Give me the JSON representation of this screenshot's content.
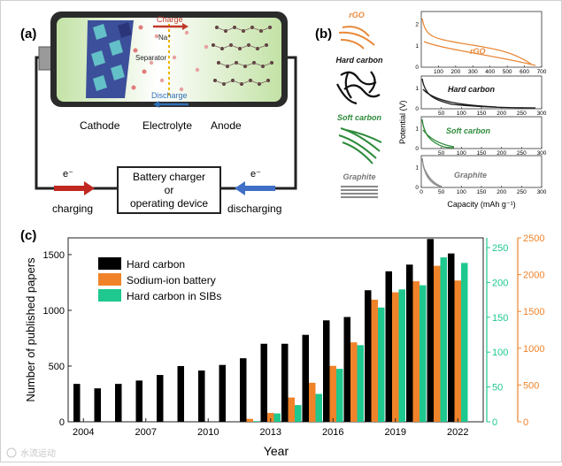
{
  "panel_a": {
    "label": "(a)",
    "charge": "Charge",
    "discharge": "Discharge",
    "na_ion": "Na⁺",
    "separator": "Separator",
    "cathode": "Cathode",
    "electrolyte": "Electrolyte",
    "anode": "Anode",
    "device_line1": "Battery charger",
    "device_line2": "or",
    "device_line3": "operating device",
    "electron_left": "e⁻",
    "electron_right": "e⁻",
    "charging": "charging",
    "discharging": "discharging"
  },
  "panel_b": {
    "label": "(b)",
    "materials": [
      "rGO",
      "Hard carbon",
      "Soft carbon",
      "Graphite"
    ],
    "ylabel": "Potential (V)",
    "xlabel": "Capacity (mAh g⁻¹)",
    "colors": {
      "rgo": "#e8893a",
      "hard": "#1a1a1a",
      "soft": "#2e8b3a",
      "graphite": "#8c8c8c"
    },
    "subplots": [
      {
        "name": "rGO",
        "xticks": [
          100,
          200,
          300,
          400,
          500,
          600,
          700
        ],
        "yticks": [
          0,
          1,
          2
        ],
        "xmax": 700
      },
      {
        "name": "Hard carbon",
        "xticks": [
          50,
          100,
          150,
          200,
          250,
          300
        ],
        "yticks": [
          0,
          1
        ],
        "xmax": 300
      },
      {
        "name": "Soft carbon",
        "xticks": [
          50,
          100,
          150,
          200,
          250,
          300
        ],
        "yticks": [
          0,
          1
        ],
        "xmax": 300
      },
      {
        "name": "Graphite",
        "xticks": [
          0,
          50,
          100,
          150,
          200,
          250,
          300
        ],
        "yticks": [
          0,
          1
        ],
        "xmax": 300
      }
    ]
  },
  "panel_c": {
    "label": "(c)",
    "chart_data": {
      "type": "bar",
      "xlabel": "Year",
      "ylabel": "Number of published papers",
      "categories": [
        2004,
        2005,
        2006,
        2007,
        2008,
        2009,
        2010,
        2011,
        2012,
        2013,
        2014,
        2015,
        2016,
        2017,
        2018,
        2019,
        2020,
        2021,
        2022
      ],
      "xticks": [
        2004,
        2007,
        2010,
        2013,
        2016,
        2019,
        2022
      ],
      "series": [
        {
          "name": "Hard carbon",
          "axis": "left",
          "color": "#000000",
          "values": [
            340,
            300,
            340,
            370,
            420,
            500,
            460,
            510,
            570,
            700,
            700,
            780,
            910,
            940,
            1180,
            1350,
            1410,
            1640,
            1510
          ]
        },
        {
          "name": "Sodium-ion battery",
          "axis": "right",
          "color": "#f0832a",
          "values": [
            null,
            null,
            null,
            null,
            null,
            null,
            null,
            null,
            40,
            120,
            330,
            530,
            760,
            1080,
            1660,
            1760,
            1910,
            2120,
            1920
          ]
        },
        {
          "name": "Hard carbon in SIBs",
          "axis": "right-inner",
          "color": "#1ec88e",
          "values": [
            null,
            null,
            null,
            null,
            null,
            null,
            null,
            null,
            1,
            12,
            24,
            40,
            76,
            110,
            164,
            190,
            196,
            236,
            228
          ]
        }
      ],
      "left_axis": {
        "ylim": [
          0,
          1650
        ],
        "ticks": [
          0,
          500,
          1000,
          1500
        ]
      },
      "right_inner_axis": {
        "ylim": [
          0,
          264
        ],
        "ticks": [
          0,
          50,
          100,
          150,
          200,
          250
        ],
        "color": "#1ec88e"
      },
      "right_axis": {
        "ylim": [
          0,
          2500
        ],
        "ticks": [
          0,
          500,
          1000,
          1500,
          2000,
          2500
        ],
        "color": "#f0832a"
      },
      "legend_position": "top-left"
    }
  },
  "watermark": "水流运动"
}
